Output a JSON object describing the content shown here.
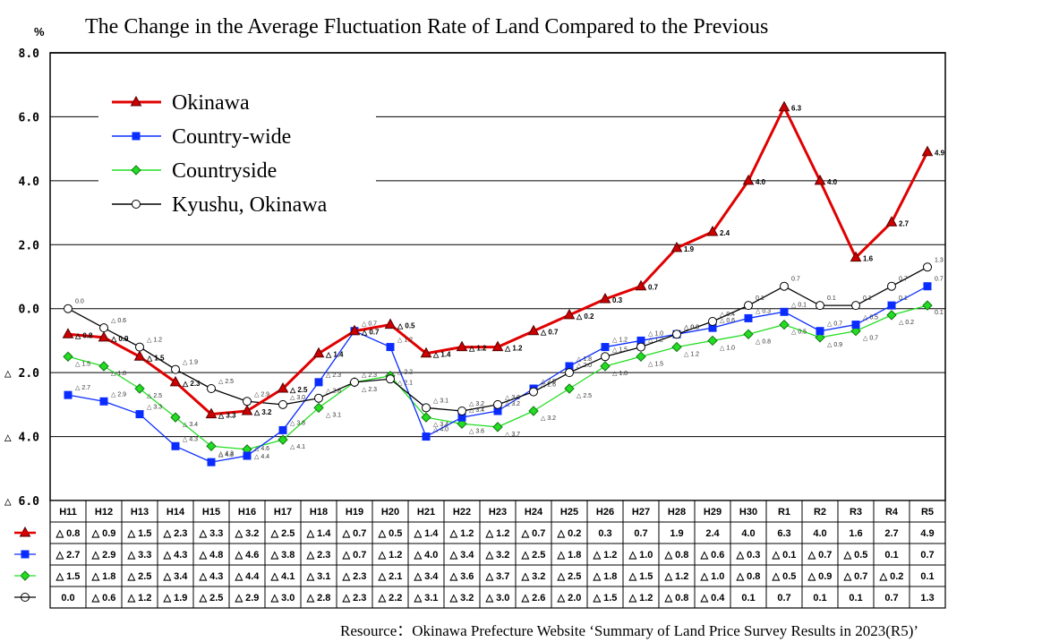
{
  "chart_data": {
    "type": "line",
    "title": "The Change in the Average Fluctuation Rate of Land Compared to the Previous",
    "unit_label": "%",
    "ylim": [
      -6,
      8
    ],
    "yticks": [
      {
        "value": 8,
        "label": "8.0"
      },
      {
        "value": 6,
        "label": "6.0"
      },
      {
        "value": 4,
        "label": "4.0"
      },
      {
        "value": 2,
        "label": "2.0"
      },
      {
        "value": 0,
        "label": "0.0"
      },
      {
        "value": -2,
        "label": "△ 2.0"
      },
      {
        "value": -4,
        "label": "△ 4.0"
      },
      {
        "value": -6,
        "label": "△ 6.0"
      }
    ],
    "grid": true,
    "legend_position": "top-left",
    "categories": [
      "H11",
      "H12",
      "H13",
      "H14",
      "H15",
      "H16",
      "H17",
      "H18",
      "H19",
      "H20",
      "H21",
      "H22",
      "H23",
      "H24",
      "H25",
      "H26",
      "H27",
      "H28",
      "H29",
      "H30",
      "R1",
      "R2",
      "R3",
      "R4",
      "R5"
    ],
    "series": [
      {
        "name": "Okinawa",
        "color": "#e00000",
        "marker": "triangle",
        "values": [
          -0.8,
          -0.9,
          -1.5,
          -2.3,
          -3.3,
          -3.2,
          -2.5,
          -1.4,
          -0.7,
          -0.5,
          -1.4,
          -1.2,
          -1.2,
          -0.7,
          -0.2,
          0.3,
          0.7,
          1.9,
          2.4,
          4.0,
          6.3,
          4.0,
          1.6,
          2.7,
          4.9
        ],
        "table": [
          "△ 0.8",
          "△ 0.9",
          "△ 1.5",
          "△ 2.3",
          "△ 3.3",
          "△ 3.2",
          "△ 2.5",
          "△ 1.4",
          "△ 0.7",
          "△ 0.5",
          "△ 1.4",
          "△ 1.2",
          "△ 1.2",
          "△ 0.7",
          "△ 0.2",
          "0.3",
          "0.7",
          "1.9",
          "2.4",
          "4.0",
          "6.3",
          "4.0",
          "1.6",
          "2.7",
          "4.9"
        ]
      },
      {
        "name": "Country-wide",
        "color": "#0a2cff",
        "marker": "square",
        "values": [
          -2.7,
          -2.9,
          -3.3,
          -4.3,
          -4.8,
          -4.6,
          -3.8,
          -2.3,
          -0.7,
          -1.2,
          -4.0,
          -3.4,
          -3.2,
          -2.5,
          -1.8,
          -1.2,
          -1.0,
          -0.8,
          -0.6,
          -0.3,
          -0.1,
          -0.7,
          -0.5,
          0.1,
          0.7
        ],
        "table": [
          "△ 2.7",
          "△ 2.9",
          "△ 3.3",
          "△ 4.3",
          "△ 4.8",
          "△ 4.6",
          "△ 3.8",
          "△ 2.3",
          "△ 0.7",
          "△ 1.2",
          "△ 4.0",
          "△ 3.4",
          "△ 3.2",
          "△ 2.5",
          "△ 1.8",
          "△ 1.2",
          "△ 1.0",
          "△ 0.8",
          "△ 0.6",
          "△ 0.3",
          "△ 0.1",
          "△ 0.7",
          "△ 0.5",
          "0.1",
          "0.7"
        ]
      },
      {
        "name": "Countryside",
        "color": "#22dd22",
        "marker": "diamond",
        "values": [
          -1.5,
          -1.8,
          -2.5,
          -3.4,
          -4.3,
          -4.4,
          -4.1,
          -3.1,
          -2.3,
          -2.1,
          -3.4,
          -3.6,
          -3.7,
          -3.2,
          -2.5,
          -1.8,
          -1.5,
          -1.2,
          -1.0,
          -0.8,
          -0.5,
          -0.9,
          -0.7,
          -0.2,
          0.1
        ],
        "table": [
          "△ 1.5",
          "△ 1.8",
          "△ 2.5",
          "△ 3.4",
          "△ 4.3",
          "△ 4.4",
          "△ 4.1",
          "△ 3.1",
          "△ 2.3",
          "△ 2.1",
          "△ 3.4",
          "△ 3.6",
          "△ 3.7",
          "△ 3.2",
          "△ 2.5",
          "△ 1.8",
          "△ 1.5",
          "△ 1.2",
          "△ 1.0",
          "△ 0.8",
          "△ 0.5",
          "△ 0.9",
          "△ 0.7",
          "△ 0.2",
          "0.1"
        ]
      },
      {
        "name": "Kyushu, Okinawa",
        "color": "#000000",
        "marker": "circle",
        "values": [
          0.0,
          -0.6,
          -1.2,
          -1.9,
          -2.5,
          -2.9,
          -3.0,
          -2.8,
          -2.3,
          -2.2,
          -3.1,
          -3.2,
          -3.0,
          -2.6,
          -2.0,
          -1.5,
          -1.2,
          -0.8,
          -0.4,
          0.1,
          0.7,
          0.1,
          0.1,
          0.7,
          1.3
        ],
        "table": [
          "0.0",
          "△ 0.6",
          "△ 1.2",
          "△ 1.9",
          "△ 2.5",
          "△ 2.9",
          "△ 3.0",
          "△ 2.8",
          "△ 2.3",
          "△ 2.2",
          "△ 3.1",
          "△ 3.2",
          "△ 3.0",
          "△ 2.6",
          "△ 2.0",
          "△ 1.5",
          "△ 1.2",
          "△ 0.8",
          "△ 0.4",
          "0.1",
          "0.7",
          "0.1",
          "0.1",
          "0.7",
          "1.3"
        ]
      }
    ]
  },
  "source_text": "Resource：Okinawa Prefecture Website ‘Summary of Land Price Survey Results in 2023(R5)’"
}
